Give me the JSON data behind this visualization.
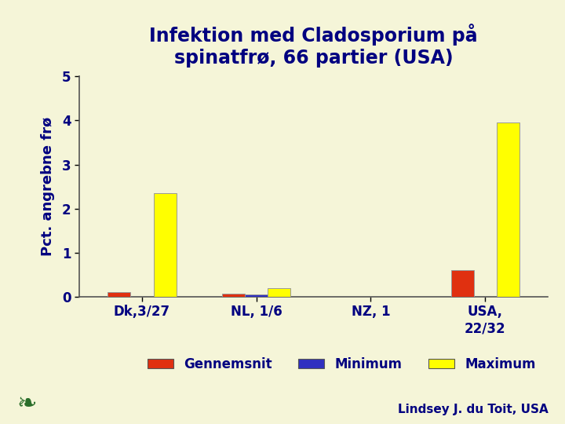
{
  "title": "Infektion med Cladosporium på\nspinatfrø, 66 partier (USA)",
  "ylabel": "Pct. angrebne frø",
  "background_color": "#f5f5d8",
  "plot_bg_color": "#f5f5d8",
  "categories": [
    "Dk,3/27",
    "NL, 1/6",
    "NZ, 1",
    "USA,\n22/32"
  ],
  "series": {
    "Gennemsnit": {
      "values": [
        0.1,
        0.07,
        0.0,
        0.6
      ],
      "color": "#e03010"
    },
    "Minimum": {
      "values": [
        0.0,
        0.05,
        0.0,
        0.0
      ],
      "color": "#3030c0"
    },
    "Maximum": {
      "values": [
        2.35,
        0.2,
        0.0,
        3.95
      ],
      "color": "#ffff00"
    }
  },
  "ylim": [
    0,
    5
  ],
  "yticks": [
    0,
    1,
    2,
    3,
    4,
    5
  ],
  "title_color": "#000080",
  "ylabel_color": "#000080",
  "tick_color": "#000080",
  "legend_labels": [
    "Gennemsnit",
    "Minimum",
    "Maximum"
  ],
  "legend_colors": [
    "#e03010",
    "#3030c0",
    "#ffff00"
  ],
  "attribution": "Lindsey J. du Toit, USA",
  "title_fontsize": 17,
  "ylabel_fontsize": 13,
  "tick_fontsize": 12,
  "legend_fontsize": 12
}
